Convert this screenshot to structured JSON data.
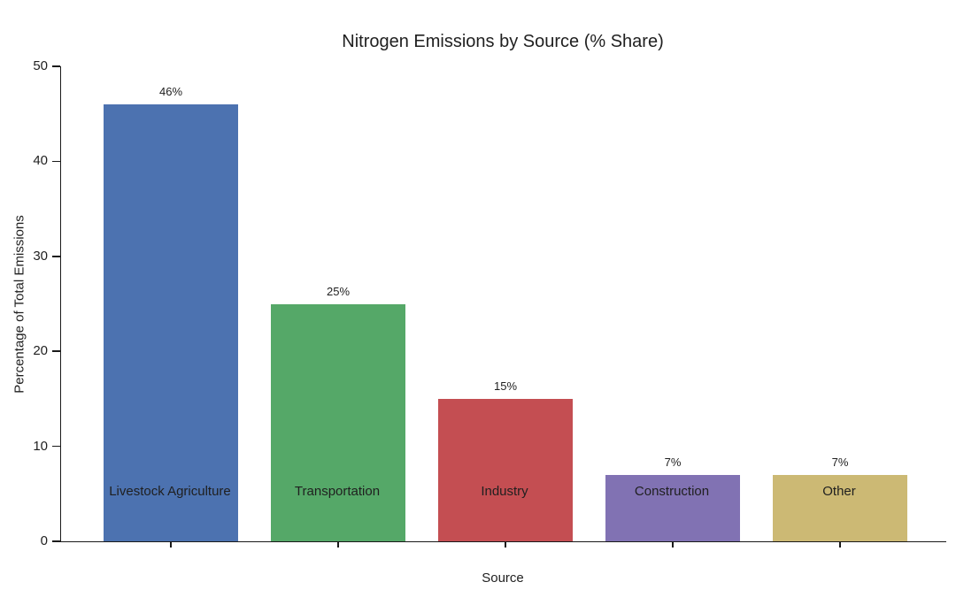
{
  "chart_data": {
    "type": "bar",
    "title": "Nitrogen Emissions by Source (% Share)",
    "xlabel": "Source",
    "ylabel": "Percentage of Total Emissions",
    "categories": [
      "Livestock Agriculture",
      "Transportation",
      "Industry",
      "Construction",
      "Other"
    ],
    "values": [
      46,
      25,
      15,
      7,
      7
    ],
    "value_labels": [
      "46%",
      "25%",
      "15%",
      "7%",
      "7%"
    ],
    "bar_colors": [
      "#4C72B0",
      "#55A868",
      "#C44E52",
      "#8172B3",
      "#CCB974"
    ],
    "ylim": [
      0,
      50
    ],
    "yticks": [
      0,
      10,
      20,
      30,
      40,
      50
    ],
    "grid": false,
    "legend": "none",
    "background_color": "#ffffff",
    "axis_color": "#1a1a1a",
    "text_color": "#1f1f1f"
  }
}
